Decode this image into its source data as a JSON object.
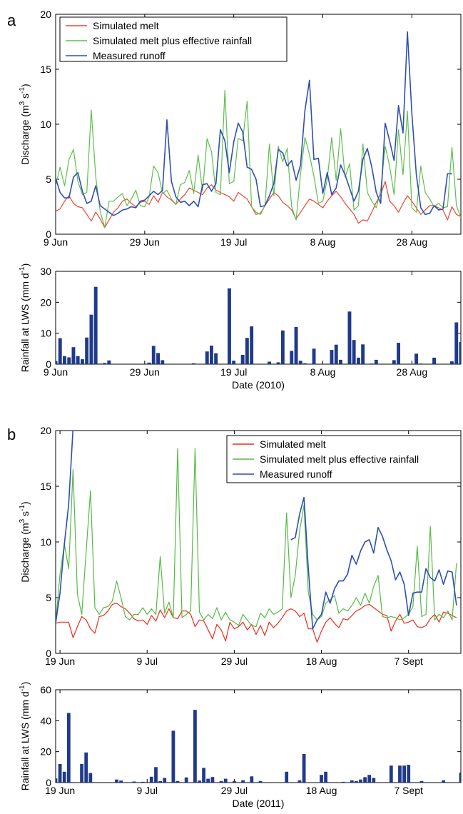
{
  "chart_data": [
    {
      "panel": "a",
      "type": "line",
      "ylabel": "Discharge (m3 s-1)",
      "ylabel_parts": [
        "Discharge (m",
        "3",
        " s",
        "-1",
        ")"
      ],
      "ylim": [
        0,
        20
      ],
      "yticks": [
        0,
        5,
        10,
        15,
        20
      ],
      "xlim": [
        0,
        91
      ],
      "xticks": [
        {
          "x": 0,
          "label": "9 Jun"
        },
        {
          "x": 20,
          "label": "29 Jun"
        },
        {
          "x": 40,
          "label": "19 Jul"
        },
        {
          "x": 60,
          "label": "8 Aug"
        },
        {
          "x": 80,
          "label": "28 Aug"
        }
      ],
      "grid": false,
      "legend_position": "top-left",
      "series": [
        {
          "name": "Simulated melt",
          "color": "#ee4433",
          "y": [
            2.1,
            2.3,
            3.0,
            3.5,
            2.8,
            2.5,
            2.4,
            1.8,
            1.2,
            2.0,
            1.4,
            0.6,
            1.3,
            2.0,
            2.4,
            3.0,
            3.2,
            2.8,
            2.5,
            2.9,
            3.0,
            2.7,
            3.5,
            2.9,
            3.8,
            3.4,
            3.1,
            2.7,
            3.2,
            3.6,
            4.2,
            4.0,
            3.8,
            3.6,
            4.2,
            4.5,
            4.0,
            3.8,
            3.6,
            3.4,
            3.0,
            3.8,
            3.5,
            3.2,
            2.5,
            1.8,
            1.9,
            2.6,
            3.2,
            3.8,
            3.5,
            2.9,
            2.6,
            2.2,
            1.4,
            2.0,
            2.6,
            3.2,
            3.0,
            2.7,
            2.4,
            3.0,
            3.5,
            3.9,
            3.4,
            2.8,
            2.3,
            1.8,
            1.0,
            1.3,
            1.2,
            2.0,
            2.9,
            3.6,
            4.8,
            3.0,
            2.6,
            2.0,
            2.8,
            3.5,
            3.0,
            2.4,
            1.8,
            2.2,
            2.6,
            2.6,
            2.4,
            2.2,
            1.3,
            2.5,
            1.8,
            1.6
          ]
        },
        {
          "name": "Simulated melt plus effective rainfall",
          "color": "#5cbf4c",
          "y": [
            4.4,
            6.1,
            4.4,
            6.8,
            7.7,
            4.8,
            3.6,
            3.8,
            11.3,
            5.2,
            2.1,
            0.6,
            3.0,
            3.0,
            3.4,
            3.7,
            2.6,
            3.2,
            4.0,
            2.6,
            2.5,
            3.4,
            6.2,
            5.6,
            3.7,
            4.0,
            3.2,
            2.7,
            4.5,
            4.7,
            5.8,
            3.7,
            7.2,
            3.9,
            8.7,
            7.5,
            3.8,
            3.6,
            13.1,
            4.6,
            4.8,
            8.7,
            8.5,
            12.1,
            2.5,
            2.0,
            1.8,
            2.6,
            8.2,
            3.5,
            8.0,
            6.6,
            7.8,
            2.5,
            1.3,
            5.5,
            8.8,
            7.2,
            5.3,
            2.8,
            3.0,
            5.0,
            8.8,
            4.9,
            9.6,
            5.2,
            6.4,
            2.2,
            2.6,
            8.2,
            3.8,
            3.0,
            2.4,
            4.0,
            8.0,
            6.2,
            3.6,
            9.5,
            5.4,
            11.2,
            2.4,
            2.0,
            6.2,
            3.8,
            3.2,
            2.5,
            2.8,
            2.4,
            2.5,
            7.9,
            2.6,
            1.5
          ]
        },
        {
          "name": "Measured runoff",
          "color": "#2f50b0",
          "y": [
            5.1,
            3.8,
            3.3,
            3.3,
            5.2,
            5.6,
            3.9,
            2.8,
            3.0,
            4.4,
            2.6,
            2.3,
            2.0,
            1.7,
            1.9,
            2.2,
            2.3,
            2.5,
            2.4,
            3.0,
            3.1,
            3.5,
            3.9,
            3.6,
            4.0,
            10.4,
            4.8,
            3.4,
            2.9,
            3.0,
            2.6,
            3.0,
            2.5,
            4.5,
            4.6,
            3.9,
            4.6,
            9.5,
            8.5,
            5.6,
            8.4,
            10.1,
            9.3,
            6.1,
            5.9,
            5.0,
            2.5,
            2.6,
            3.5,
            4.6,
            7.7,
            7.4,
            6.2,
            6.7,
            4.9,
            6.3,
            11.3,
            14.0,
            6.8,
            6.9,
            3.7,
            5.6,
            3.6,
            4.2,
            6.3,
            5.4,
            4.2,
            3.0,
            3.9,
            6.8,
            7.8,
            6.1,
            3.8,
            2.8,
            10.1,
            8.5,
            6.7,
            11.7,
            9.2,
            18.4,
            11.0,
            5.4,
            2.4,
            1.8,
            1.9,
            2.6,
            2.2,
            2.3,
            5.5,
            5.5,
            null,
            6.2
          ]
        }
      ]
    },
    {
      "panel": "a",
      "type": "bar",
      "ylabel": "Rainfall at LWS (mm d-1)",
      "ylabel_parts": [
        "Rainfall at LWS (mm d",
        "-1",
        ")"
      ],
      "xlabel": "Date (2010)",
      "ylim": [
        0,
        30
      ],
      "yticks": [
        0,
        10,
        20,
        30
      ],
      "xlim": [
        0,
        91
      ],
      "xticks": [
        {
          "x": 0,
          "label": "9 Jun"
        },
        {
          "x": 20,
          "label": "29 Jun"
        },
        {
          "x": 40,
          "label": "19 Jul"
        },
        {
          "x": 60,
          "label": "8 Aug"
        },
        {
          "x": 80,
          "label": "28 Aug"
        }
      ],
      "color": "#1f3a8a",
      "x": [
        0,
        1,
        2,
        3,
        4,
        5,
        6,
        7,
        8,
        9,
        10,
        11,
        12,
        21,
        22,
        23,
        24,
        31,
        34,
        35,
        36,
        39,
        40,
        42,
        43,
        44,
        48,
        50,
        51,
        53,
        54,
        55,
        56,
        58,
        62,
        63,
        64,
        66,
        67,
        68,
        69,
        71,
        72,
        76,
        77,
        81,
        82,
        85,
        89,
        90,
        91
      ],
      "values": [
        1.0,
        8.4,
        2.6,
        2.2,
        5.5,
        2.6,
        1.6,
        8.6,
        16.0,
        25.0,
        0.2,
        0.4,
        1.2,
        0.5,
        5.9,
        3.6,
        1.3,
        0.3,
        4.1,
        6.0,
        3.5,
        24.5,
        1.1,
        3.0,
        8.5,
        12.2,
        0.8,
        0.6,
        10.9,
        4.3,
        12.0,
        1.1,
        0.3,
        5.0,
        4.6,
        6.3,
        1.4,
        17.0,
        7.8,
        2.1,
        6.4,
        0.2,
        1.4,
        1.3,
        6.9,
        3.4,
        0.2,
        2.1,
        0.9,
        13.5,
        7.2
      ]
    },
    {
      "panel": "b",
      "type": "line",
      "ylabel": "Discharge (m3 s-1)",
      "ylabel_parts": [
        "Discharge (m",
        "3",
        " s",
        "-1",
        ")"
      ],
      "ylim": [
        0,
        20
      ],
      "yticks": [
        0,
        5,
        10,
        15,
        20
      ],
      "xlim": [
        0,
        93
      ],
      "xticks": [
        {
          "x": 1,
          "label": "19 Jun"
        },
        {
          "x": 21,
          "label": "9 Jul"
        },
        {
          "x": 41,
          "label": "29 Jul"
        },
        {
          "x": 61,
          "label": "18 Aug"
        },
        {
          "x": 81,
          "label": "7 Sept"
        }
      ],
      "grid": false,
      "legend_position": "top-right",
      "series": [
        {
          "name": "Simulated melt",
          "color": "#ee2a1a",
          "y": [
            2.7,
            2.8,
            2.8,
            2.8,
            1.4,
            2.4,
            3.3,
            3.0,
            2.2,
            1.8,
            3.3,
            3.4,
            3.8,
            4.4,
            4.5,
            4.2,
            4.0,
            3.6,
            3.1,
            2.9,
            3.0,
            2.6,
            3.4,
            2.9,
            3.9,
            3.2,
            4.0,
            3.2,
            3.1,
            3.8,
            3.8,
            3.5,
            2.4,
            3.0,
            2.9,
            2.1,
            1.3,
            2.6,
            2.1,
            1.1,
            2.8,
            2.2,
            2.4,
            2.8,
            2.1,
            2.6,
            1.7,
            2.5,
            1.6,
            2.8,
            2.3,
            2.7,
            3.2,
            3.8,
            4.0,
            3.8,
            3.3,
            3.6,
            2.2,
            2.2,
            1.0,
            2.0,
            2.8,
            3.2,
            2.7,
            2.3,
            3.1,
            3.0,
            3.4,
            3.8,
            4.0,
            4.3,
            4.4,
            4.1,
            3.8,
            3.5,
            3.4,
            2.0,
            2.9,
            3.5,
            2.7,
            2.8,
            3.0,
            2.4,
            2.3,
            2.5,
            3.1,
            3.5,
            2.8,
            3.7,
            3.6,
            3.4,
            3.2
          ]
        },
        {
          "name": "Simulated melt plus effective rainfall",
          "color": "#55bb44",
          "y": [
            2.7,
            7.1,
            9.8,
            7.6,
            16.5,
            5.3,
            3.5,
            9.2,
            14.6,
            4.1,
            3.5,
            4.1,
            4.2,
            4.7,
            6.5,
            5.0,
            3.3,
            3.0,
            3.5,
            3.5,
            4.1,
            3.5,
            4.0,
            3.5,
            8.7,
            3.6,
            4.6,
            3.2,
            18.4,
            3.2,
            3.5,
            3.8,
            18.4,
            3.7,
            3.0,
            3.5,
            3.1,
            4.1,
            3.0,
            3.7,
            3.0,
            2.8,
            2.5,
            3.5,
            3.0,
            2.5,
            2.4,
            3.6,
            3.2,
            4.0,
            3.5,
            3.7,
            4.0,
            12.6,
            5.0,
            7.0,
            11.0,
            13.3,
            5.5,
            3.5,
            3.0,
            3.3,
            4.5,
            4.8,
            5.2,
            3.6,
            4.0,
            3.8,
            4.3,
            5.0,
            4.3,
            5.4,
            4.5,
            6.0,
            7.0,
            3.3,
            3.2,
            3.3,
            3.2,
            3.0,
            3.2,
            3.5,
            4.2,
            9.6,
            3.3,
            3.5,
            11.4,
            3.0,
            3.5,
            3.2,
            3.8,
            3.0,
            8.1
          ]
        },
        {
          "name": "Measured runoff",
          "color": "#2c4fb5",
          "y": [
            2.7,
            5.4,
            9.8,
            13.4,
            20.2,
            null,
            null,
            null,
            null,
            null,
            null,
            null,
            null,
            null,
            null,
            null,
            null,
            null,
            null,
            null,
            null,
            null,
            null,
            null,
            null,
            null,
            null,
            null,
            null,
            null,
            null,
            null,
            null,
            null,
            null,
            null,
            null,
            null,
            null,
            null,
            null,
            null,
            null,
            null,
            null,
            null,
            null,
            null,
            null,
            null,
            null,
            null,
            null,
            null,
            10.2,
            10.4,
            12.5,
            14.0,
            7.6,
            2.2,
            3.0,
            3.5,
            5.5,
            4.5,
            5.8,
            6.5,
            6.5,
            7.1,
            8.8,
            8.0,
            9.2,
            10.0,
            10.2,
            9.0,
            11.3,
            10.5,
            9.3,
            8.3,
            6.6,
            7.3,
            6.2,
            3.4,
            5.4,
            5.5,
            5.5,
            7.6,
            6.8,
            6.5,
            7.5,
            6.2,
            7.4,
            7.3,
            4.3
          ]
        }
      ]
    },
    {
      "panel": "b",
      "type": "bar",
      "ylabel": "Rainfall at LWS (mm d-1)",
      "ylabel_parts": [
        "Rainfall at LWS (mm d",
        "-1",
        ")"
      ],
      "xlabel": "Date (2011)",
      "ylim": [
        0,
        60
      ],
      "yticks": [
        0,
        20,
        40,
        60
      ],
      "xlim": [
        0,
        93
      ],
      "xticks": [
        {
          "x": 1,
          "label": "19 Jun"
        },
        {
          "x": 21,
          "label": "9 Jul"
        },
        {
          "x": 41,
          "label": "29 Jul"
        },
        {
          "x": 61,
          "label": "18 Aug"
        },
        {
          "x": 81,
          "label": "7 Sept"
        }
      ],
      "color": "#1f3a8a",
      "x": [
        0,
        1,
        2,
        3,
        4,
        6,
        7,
        8,
        14,
        15,
        18,
        20,
        22,
        23,
        24,
        25,
        27,
        28,
        30,
        32,
        33,
        34,
        35,
        36,
        38,
        39,
        41,
        43,
        45,
        47,
        53,
        56,
        57,
        61,
        62,
        66,
        68,
        69,
        70,
        71,
        72,
        73,
        77,
        79,
        80,
        81,
        84,
        89,
        93
      ],
      "values": [
        2.7,
        12.0,
        7.0,
        45.0,
        0.3,
        12.0,
        19.5,
        6.2,
        2.0,
        1.3,
        0.7,
        0.5,
        3.8,
        10.0,
        1.0,
        3.0,
        33.5,
        1.0,
        3.3,
        47.0,
        1.3,
        9.5,
        2.5,
        3.6,
        1.0,
        2.5,
        1.0,
        1.5,
        4.0,
        1.0,
        7.0,
        1.5,
        18.5,
        5.0,
        7.0,
        0.5,
        1.5,
        1.0,
        2.0,
        3.5,
        5.0,
        3.0,
        11.0,
        11.0,
        11.0,
        11.5,
        1.0,
        1.5,
        6.5
      ]
    }
  ],
  "panels": [
    {
      "letter": "a"
    },
    {
      "letter": "b"
    }
  ]
}
